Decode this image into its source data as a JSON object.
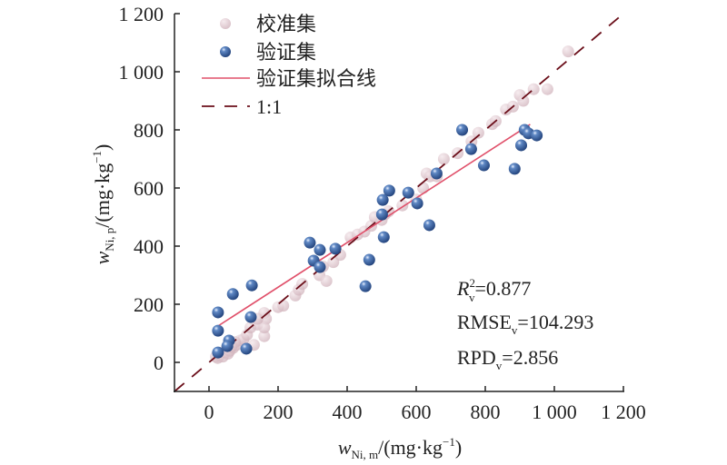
{
  "chart_data": {
    "type": "scatter",
    "title": "",
    "xlabel": {
      "main": "w",
      "sub": "Ni, m",
      "unit": "/(mg·kg",
      "sup": "−1",
      "close": ")"
    },
    "ylabel": {
      "main": "w",
      "sub": "Ni, p",
      "unit": "/(mg·kg",
      "sup": "−1",
      "close": ")"
    },
    "xlim": [
      -100,
      1200
    ],
    "ylim": [
      -100,
      1200
    ],
    "xticks": [
      0,
      200,
      400,
      600,
      800,
      1000,
      1200
    ],
    "xtick_labels": [
      "0",
      "200",
      "400",
      "600",
      "800",
      "1 000",
      "1 200"
    ],
    "yticks": [
      0,
      200,
      400,
      600,
      800,
      1000,
      1200
    ],
    "ytick_labels": [
      "0",
      "200",
      "400",
      "600",
      "800",
      "1 000",
      "1 200"
    ],
    "grid": false,
    "legend": {
      "placement": "top-left",
      "entries": [
        "校准集",
        "验证集",
        "验证集拟合线",
        "1:1"
      ]
    },
    "colors": {
      "calibration": "#d9bfc6",
      "validation": "#3d66a3",
      "fit": "#e0506a",
      "identity": "#6b0f1a"
    },
    "series": [
      {
        "name": "校准集",
        "type": "scatter",
        "points": [
          [
            20,
            20
          ],
          [
            25,
            15
          ],
          [
            30,
            25
          ],
          [
            35,
            30
          ],
          [
            40,
            20
          ],
          [
            45,
            35
          ],
          [
            50,
            45
          ],
          [
            55,
            30
          ],
          [
            60,
            40
          ],
          [
            70,
            50
          ],
          [
            80,
            60
          ],
          [
            90,
            75
          ],
          [
            100,
            80
          ],
          [
            110,
            95
          ],
          [
            75,
            70
          ],
          [
            65,
            55
          ],
          [
            120,
            120
          ],
          [
            140,
            130
          ],
          [
            160,
            90
          ],
          [
            160,
            170
          ],
          [
            165,
            150
          ],
          [
            200,
            190
          ],
          [
            215,
            195
          ],
          [
            250,
            230
          ],
          [
            260,
            250
          ],
          [
            270,
            270
          ],
          [
            320,
            300
          ],
          [
            330,
            330
          ],
          [
            340,
            280
          ],
          [
            360,
            345
          ],
          [
            380,
            370
          ],
          [
            410,
            430
          ],
          [
            430,
            440
          ],
          [
            450,
            450
          ],
          [
            470,
            470
          ],
          [
            480,
            500
          ],
          [
            500,
            490
          ],
          [
            510,
            510
          ],
          [
            520,
            520
          ],
          [
            560,
            540
          ],
          [
            600,
            560
          ],
          [
            620,
            600
          ],
          [
            630,
            650
          ],
          [
            640,
            640
          ],
          [
            660,
            640
          ],
          [
            680,
            700
          ],
          [
            720,
            720
          ],
          [
            760,
            760
          ],
          [
            780,
            790
          ],
          [
            820,
            820
          ],
          [
            830,
            830
          ],
          [
            860,
            870
          ],
          [
            880,
            880
          ],
          [
            900,
            920
          ],
          [
            910,
            900
          ],
          [
            940,
            940
          ],
          [
            1040,
            1070
          ],
          [
            980,
            940
          ],
          [
            160,
            120
          ],
          [
            130,
            60
          ],
          [
            140,
            150
          ]
        ]
      },
      {
        "name": "验证集",
        "type": "scatter",
        "points": [
          [
            26,
            172
          ],
          [
            26,
            109
          ],
          [
            69,
            235
          ],
          [
            124,
            265
          ],
          [
            121,
            156
          ],
          [
            26,
            34
          ],
          [
            58,
            75
          ],
          [
            53,
            56
          ],
          [
            108,
            47
          ],
          [
            292,
            412
          ],
          [
            303,
            350
          ],
          [
            321,
            387
          ],
          [
            366,
            391
          ],
          [
            321,
            328
          ],
          [
            522,
            591
          ],
          [
            464,
            353
          ],
          [
            453,
            262
          ],
          [
            501,
            509
          ],
          [
            503,
            559
          ],
          [
            506,
            431
          ],
          [
            577,
            584
          ],
          [
            603,
            547
          ],
          [
            638,
            472
          ],
          [
            659,
            650
          ],
          [
            733,
            800
          ],
          [
            759,
            734
          ],
          [
            796,
            678
          ],
          [
            885,
            666
          ],
          [
            904,
            747
          ],
          [
            914,
            800
          ],
          [
            925,
            788
          ],
          [
            949,
            781
          ]
        ]
      },
      {
        "name": "验证集拟合线",
        "type": "line",
        "x": [
          26,
          930
        ],
        "y": [
          125,
          819
        ]
      },
      {
        "name": "1:1",
        "type": "line",
        "x": [
          -100,
          1200
        ],
        "y": [
          -100,
          1200
        ]
      }
    ],
    "annotations": {
      "r2": {
        "label": "R",
        "sup": "2",
        "sub": "v",
        "value": "=0.877"
      },
      "rmse": {
        "label": "RMSE",
        "sub": "v",
        "value": "=104.293"
      },
      "rpd": {
        "label": "RPD",
        "sub": "v",
        "value": "=2.856"
      }
    }
  }
}
